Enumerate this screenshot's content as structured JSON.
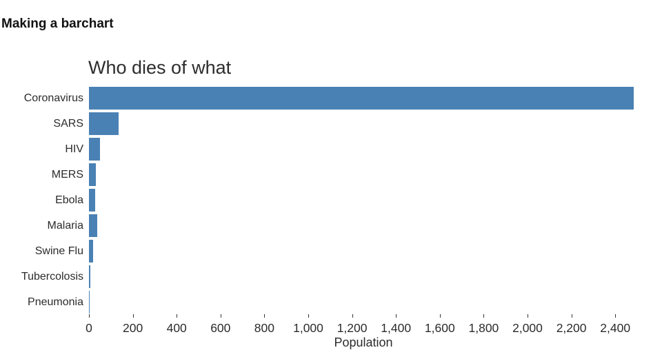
{
  "page": {
    "heading": "Making a barchart"
  },
  "chart_data": {
    "type": "bar",
    "orientation": "horizontal",
    "title": "Who dies of what",
    "xlabel": "Population",
    "ylabel": "",
    "categories": [
      "Coronavirus",
      "SARS",
      "HIV",
      "MERS",
      "Ebola",
      "Malaria",
      "Swine Flu",
      "Tubercolosis",
      "Pneumonia"
    ],
    "values": [
      2485,
      135,
      50,
      31,
      29,
      39,
      19,
      6,
      4
    ],
    "xlim": [
      0,
      2500
    ],
    "xticks": [
      0,
      200,
      400,
      600,
      800,
      1000,
      1200,
      1400,
      1600,
      1800,
      2000,
      2200,
      2400
    ],
    "xtick_labels": [
      "0",
      "200",
      "400",
      "600",
      "800",
      "1,000",
      "1,200",
      "1,400",
      "1,600",
      "1,800",
      "2,000",
      "2,200",
      "2,400"
    ],
    "bar_color": "#4a81b4",
    "grid": false,
    "legend": null
  }
}
